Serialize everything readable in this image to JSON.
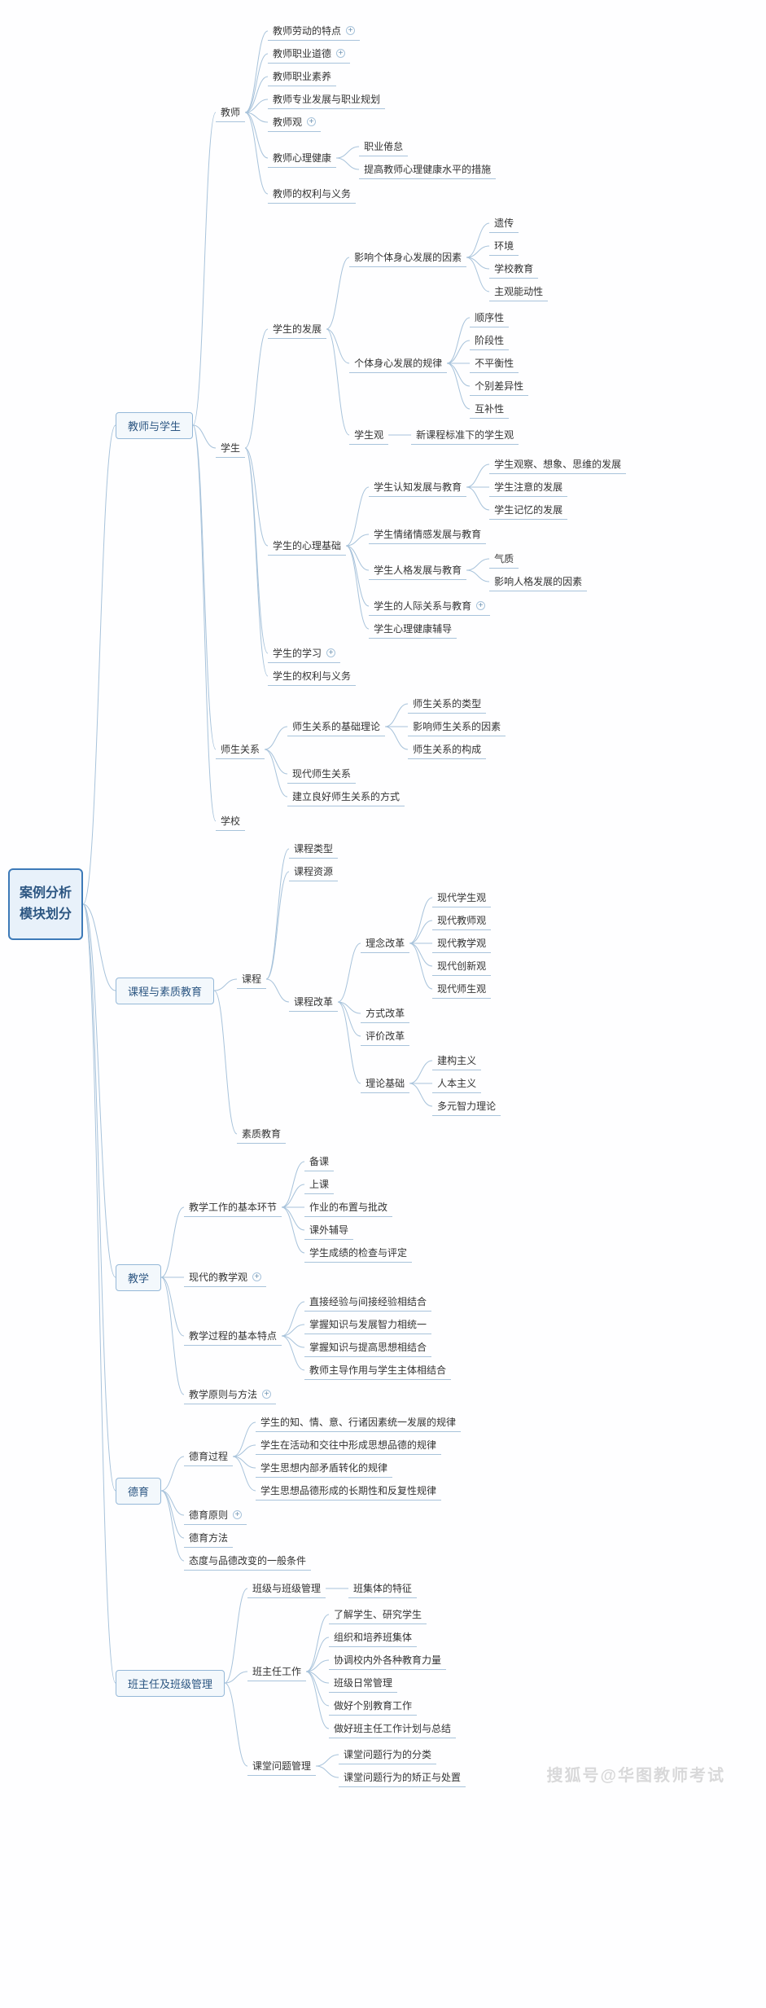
{
  "style": {
    "line_color": "#a8c3db",
    "line_width": 1,
    "root_border": "#3d7ab8",
    "root_bg": "#e8f1fa",
    "root_text": "#2c5682",
    "branch_border": "#95b8d8",
    "branch_bg": "#f3f8fc",
    "leaf_underline": "#a8c3db",
    "background": "#fefeff",
    "font_family": "Microsoft YaHei",
    "root_fontsize": 16,
    "branch_fontsize": 13,
    "leaf_fontsize": 12,
    "connector_width": 24
  },
  "watermark": "搜狐号@华图教师考试",
  "root": {
    "label_line1": "案例分析",
    "label_line2": "模块划分",
    "children": [
      {
        "label": "教师与学生",
        "type": "branch",
        "children": [
          {
            "label": "教师",
            "type": "leaf",
            "children": [
              {
                "label": "教师劳动的特点",
                "plus": true
              },
              {
                "label": "教师职业道德",
                "plus": true
              },
              {
                "label": "教师职业素养"
              },
              {
                "label": "教师专业发展与职业规划"
              },
              {
                "label": "教师观",
                "plus": true
              },
              {
                "label": "教师心理健康",
                "children": [
                  {
                    "label": "职业倦怠"
                  },
                  {
                    "label": "提高教师心理健康水平的措施"
                  }
                ]
              },
              {
                "label": "教师的权利与义务"
              }
            ]
          },
          {
            "label": "学生",
            "type": "leaf",
            "children": [
              {
                "label": "学生的发展",
                "children": [
                  {
                    "label": "影响个体身心发展的因素",
                    "children": [
                      {
                        "label": "遗传"
                      },
                      {
                        "label": "环境"
                      },
                      {
                        "label": "学校教育"
                      },
                      {
                        "label": "主观能动性"
                      }
                    ]
                  },
                  {
                    "label": "个体身心发展的规律",
                    "children": [
                      {
                        "label": "顺序性"
                      },
                      {
                        "label": "阶段性"
                      },
                      {
                        "label": "不平衡性"
                      },
                      {
                        "label": "个别差异性"
                      },
                      {
                        "label": "互补性"
                      }
                    ]
                  },
                  {
                    "label": "学生观",
                    "children": [
                      {
                        "label": "新课程标准下的学生观"
                      }
                    ]
                  }
                ]
              },
              {
                "label": "学生的心理基础",
                "children": [
                  {
                    "label": "学生认知发展与教育",
                    "children": [
                      {
                        "label": "学生观察、想象、思维的发展"
                      },
                      {
                        "label": "学生注意的发展"
                      },
                      {
                        "label": "学生记忆的发展"
                      }
                    ]
                  },
                  {
                    "label": "学生情绪情感发展与教育"
                  },
                  {
                    "label": "学生人格发展与教育",
                    "children": [
                      {
                        "label": "气质"
                      },
                      {
                        "label": "影响人格发展的因素"
                      }
                    ]
                  },
                  {
                    "label": "学生的人际关系与教育",
                    "plus": true
                  },
                  {
                    "label": "学生心理健康辅导"
                  }
                ]
              },
              {
                "label": "学生的学习",
                "plus": true
              },
              {
                "label": "学生的权利与义务"
              }
            ]
          },
          {
            "label": "师生关系",
            "type": "leaf",
            "children": [
              {
                "label": "师生关系的基础理论",
                "children": [
                  {
                    "label": "师生关系的类型"
                  },
                  {
                    "label": "影响师生关系的因素"
                  },
                  {
                    "label": "师生关系的构成"
                  }
                ]
              },
              {
                "label": "现代师生关系"
              },
              {
                "label": "建立良好师生关系的方式"
              }
            ]
          },
          {
            "label": "学校",
            "type": "leaf"
          }
        ]
      },
      {
        "label": "课程与素质教育",
        "type": "branch",
        "children": [
          {
            "label": "课程",
            "type": "leaf",
            "children": [
              {
                "label": "课程类型"
              },
              {
                "label": "课程资源"
              },
              {
                "label": "课程改革",
                "children": [
                  {
                    "label": "理念改革",
                    "children": [
                      {
                        "label": "现代学生观"
                      },
                      {
                        "label": "现代教师观"
                      },
                      {
                        "label": "现代教学观"
                      },
                      {
                        "label": "现代创新观"
                      },
                      {
                        "label": "现代师生观"
                      }
                    ]
                  },
                  {
                    "label": "方式改革"
                  },
                  {
                    "label": "评价改革"
                  },
                  {
                    "label": "理论基础",
                    "children": [
                      {
                        "label": "建构主义"
                      },
                      {
                        "label": "人本主义"
                      },
                      {
                        "label": "多元智力理论"
                      }
                    ]
                  }
                ]
              }
            ]
          },
          {
            "label": "素质教育",
            "type": "leaf"
          }
        ]
      },
      {
        "label": "教学",
        "type": "branch",
        "children": [
          {
            "label": "教学工作的基本环节",
            "type": "leaf",
            "children": [
              {
                "label": "备课"
              },
              {
                "label": "上课"
              },
              {
                "label": "作业的布置与批改"
              },
              {
                "label": "课外辅导"
              },
              {
                "label": "学生成绩的检查与评定"
              }
            ]
          },
          {
            "label": "现代的教学观",
            "type": "leaf",
            "plus": true
          },
          {
            "label": "教学过程的基本特点",
            "type": "leaf",
            "children": [
              {
                "label": "直接经验与间接经验相结合"
              },
              {
                "label": "掌握知识与发展智力相统一"
              },
              {
                "label": "掌握知识与提高思想相结合"
              },
              {
                "label": "教师主导作用与学生主体相结合"
              }
            ]
          },
          {
            "label": "教学原则与方法",
            "type": "leaf",
            "plus": true
          }
        ]
      },
      {
        "label": "德育",
        "type": "branch",
        "children": [
          {
            "label": "德育过程",
            "type": "leaf",
            "children": [
              {
                "label": "学生的知、情、意、行诸因素统一发展的规律"
              },
              {
                "label": "学生在活动和交往中形成思想品德的规律"
              },
              {
                "label": "学生思想内部矛盾转化的规律"
              },
              {
                "label": "学生思想品德形成的长期性和反复性规律"
              }
            ]
          },
          {
            "label": "德育原则",
            "type": "leaf",
            "plus": true
          },
          {
            "label": "德育方法",
            "type": "leaf"
          },
          {
            "label": "态度与品德改变的一般条件",
            "type": "leaf"
          }
        ]
      },
      {
        "label": "班主任及班级管理",
        "type": "branch",
        "children": [
          {
            "label": "班级与班级管理",
            "type": "leaf",
            "children": [
              {
                "label": "班集体的特征"
              }
            ]
          },
          {
            "label": "班主任工作",
            "type": "leaf",
            "children": [
              {
                "label": "了解学生、研究学生"
              },
              {
                "label": "组织和培养班集体"
              },
              {
                "label": "协调校内外各种教育力量"
              },
              {
                "label": "班级日常管理"
              },
              {
                "label": "做好个别教育工作"
              },
              {
                "label": "做好班主任工作计划与总结"
              }
            ]
          },
          {
            "label": "课堂问题管理",
            "type": "leaf",
            "children": [
              {
                "label": "课堂问题行为的分类"
              },
              {
                "label": "课堂问题行为的矫正与处置"
              }
            ]
          }
        ]
      }
    ]
  }
}
